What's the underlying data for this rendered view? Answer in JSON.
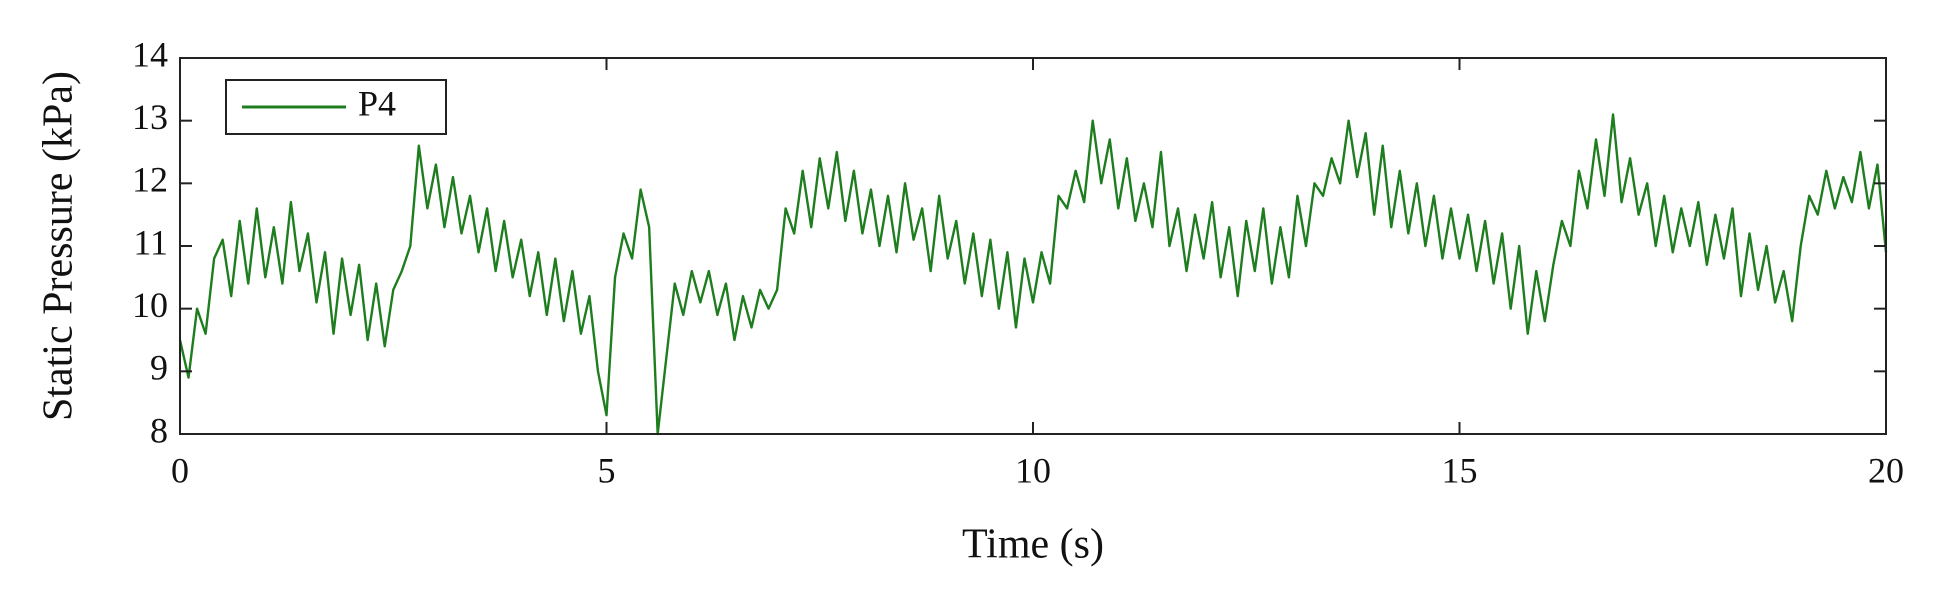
{
  "chart_data": {
    "type": "line",
    "xlabel": "Time (s)",
    "ylabel": "Static Pressure (kPa)",
    "xlim": [
      0,
      20
    ],
    "xticks": [
      0,
      5,
      10,
      15,
      20
    ],
    "ylim": [
      8,
      14
    ],
    "yticks": [
      8,
      9,
      10,
      11,
      12,
      13,
      14
    ],
    "legend": "upper left",
    "grid": false,
    "x": [
      0,
      0.1,
      0.2,
      0.3,
      0.4,
      0.5,
      0.6,
      0.7,
      0.8,
      0.9,
      1,
      1.1,
      1.2,
      1.3,
      1.4,
      1.5,
      1.6,
      1.7,
      1.8,
      1.9,
      2,
      2.1,
      2.2,
      2.3,
      2.4,
      2.5,
      2.6,
      2.7,
      2.8,
      2.9,
      3,
      3.1,
      3.2,
      3.3,
      3.4,
      3.5,
      3.6,
      3.7,
      3.8,
      3.9,
      4,
      4.1,
      4.2,
      4.3,
      4.4,
      4.5,
      4.6,
      4.7,
      4.8,
      4.9,
      5,
      5.1,
      5.2,
      5.3,
      5.4,
      5.5,
      5.6,
      5.7,
      5.8,
      5.9,
      6,
      6.1,
      6.2,
      6.3,
      6.4,
      6.5,
      6.6,
      6.7,
      6.8,
      6.9,
      7,
      7.1,
      7.2,
      7.3,
      7.4,
      7.5,
      7.6,
      7.7,
      7.8,
      7.9,
      8,
      8.1,
      8.2,
      8.3,
      8.4,
      8.5,
      8.6,
      8.7,
      8.8,
      8.9,
      9,
      9.1,
      9.2,
      9.3,
      9.4,
      9.5,
      9.6,
      9.7,
      9.8,
      9.9,
      10,
      10.1,
      10.2,
      10.3,
      10.4,
      10.5,
      10.6,
      10.7,
      10.8,
      10.9,
      11,
      11.1,
      11.2,
      11.3,
      11.4,
      11.5,
      11.6,
      11.7,
      11.8,
      11.9,
      12,
      12.1,
      12.2,
      12.3,
      12.4,
      12.5,
      12.6,
      12.7,
      12.8,
      12.9,
      13,
      13.1,
      13.2,
      13.3,
      13.4,
      13.5,
      13.6,
      13.7,
      13.8,
      13.9,
      14,
      14.1,
      14.2,
      14.3,
      14.4,
      14.5,
      14.6,
      14.7,
      14.8,
      14.9,
      15,
      15.1,
      15.2,
      15.3,
      15.4,
      15.5,
      15.6,
      15.7,
      15.8,
      15.9,
      16,
      16.1,
      16.2,
      16.3,
      16.4,
      16.5,
      16.6,
      16.7,
      16.8,
      16.9,
      17,
      17.1,
      17.2,
      17.3,
      17.4,
      17.5,
      17.6,
      17.7,
      17.8,
      17.9,
      18,
      18.1,
      18.2,
      18.3,
      18.4,
      18.5,
      18.6,
      18.7,
      18.8,
      18.9,
      19,
      19.1,
      19.2,
      19.3,
      19.4,
      19.5,
      19.6,
      19.7,
      19.8,
      19.9,
      20
    ],
    "series": [
      {
        "name": "P4",
        "color": "#1e7d1e",
        "values": [
          9.5,
          8.9,
          10.0,
          9.6,
          10.8,
          11.1,
          10.2,
          11.4,
          10.4,
          11.6,
          10.5,
          11.3,
          10.4,
          11.7,
          10.6,
          11.2,
          10.1,
          10.9,
          9.6,
          10.8,
          9.9,
          10.7,
          9.5,
          10.4,
          9.4,
          10.3,
          10.6,
          11.0,
          12.6,
          11.6,
          12.3,
          11.3,
          12.1,
          11.2,
          11.8,
          10.9,
          11.6,
          10.6,
          11.4,
          10.5,
          11.1,
          10.2,
          10.9,
          9.9,
          10.8,
          9.8,
          10.6,
          9.6,
          10.2,
          9.0,
          8.3,
          10.5,
          11.2,
          10.8,
          11.9,
          11.3,
          8.0,
          9.2,
          10.4,
          9.9,
          10.6,
          10.1,
          10.6,
          9.9,
          10.4,
          9.5,
          10.2,
          9.7,
          10.3,
          10.0,
          10.3,
          11.6,
          11.2,
          12.2,
          11.3,
          12.4,
          11.6,
          12.5,
          11.4,
          12.2,
          11.2,
          11.9,
          11.0,
          11.8,
          10.9,
          12.0,
          11.1,
          11.6,
          10.6,
          11.8,
          10.8,
          11.4,
          10.4,
          11.2,
          10.2,
          11.1,
          10.0,
          10.9,
          9.7,
          10.8,
          10.1,
          10.9,
          10.4,
          11.8,
          11.6,
          12.2,
          11.7,
          13.0,
          12.0,
          12.7,
          11.6,
          12.4,
          11.4,
          12.0,
          11.3,
          12.5,
          11.0,
          11.6,
          10.6,
          11.5,
          10.8,
          11.7,
          10.5,
          11.3,
          10.2,
          11.4,
          10.6,
          11.6,
          10.4,
          11.3,
          10.5,
          11.8,
          11.0,
          12.0,
          11.8,
          12.4,
          12.0,
          13.0,
          12.1,
          12.8,
          11.5,
          12.6,
          11.3,
          12.2,
          11.2,
          12.0,
          11.0,
          11.8,
          10.8,
          11.6,
          10.8,
          11.5,
          10.6,
          11.4,
          10.4,
          11.2,
          10.0,
          11.0,
          9.6,
          10.6,
          9.8,
          10.7,
          11.4,
          11.0,
          12.2,
          11.6,
          12.7,
          11.8,
          13.1,
          11.7,
          12.4,
          11.5,
          12.0,
          11.0,
          11.8,
          10.9,
          11.6,
          11.0,
          11.7,
          10.7,
          11.5,
          10.8,
          11.6,
          10.2,
          11.2,
          10.3,
          11.0,
          10.1,
          10.6,
          9.8,
          11.0,
          11.8,
          11.5,
          12.2,
          11.6,
          12.1,
          11.7,
          12.5,
          11.6,
          12.3,
          10.9
        ]
      }
    ]
  }
}
